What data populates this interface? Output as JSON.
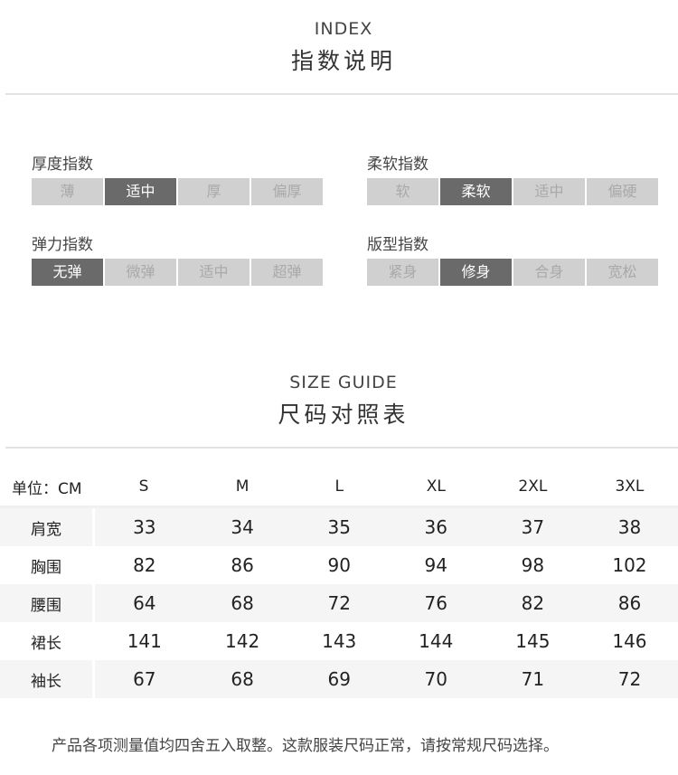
{
  "index_section": {
    "title_en": "INDEX",
    "title_cn": "指数说明",
    "groups": [
      {
        "label": "厚度指数",
        "options": [
          "薄",
          "适中",
          "厚",
          "偏厚"
        ],
        "selected": "适中"
      },
      {
        "label": "柔软指数",
        "options": [
          "软",
          "柔软",
          "适中",
          "偏硬"
        ],
        "selected": "柔软"
      },
      {
        "label": "弹力指数",
        "options": [
          "无弹",
          "微弹",
          "适中",
          "超弹"
        ],
        "selected": "无弹"
      },
      {
        "label": "版型指数",
        "options": [
          "紧身",
          "修身",
          "合身",
          "宽松"
        ],
        "selected": "修身"
      }
    ]
  },
  "size_section": {
    "title_en": "SIZE GUIDE",
    "title_cn": "尺码对照表",
    "table": {
      "headers": [
        "单位：CM",
        "S",
        "M",
        "L",
        "XL",
        "2XL",
        "3XL"
      ],
      "rows": [
        [
          "肩宽",
          "33",
          "34",
          "35",
          "36",
          "37",
          "38"
        ],
        [
          "胸围",
          "82",
          "86",
          "90",
          "94",
          "98",
          "102"
        ],
        [
          "腰围",
          "64",
          "68",
          "72",
          "76",
          "82",
          "86"
        ],
        [
          "裙长",
          "141",
          "142",
          "143",
          "144",
          "145",
          "146"
        ],
        [
          "袖长",
          "67",
          "68",
          "69",
          "70",
          "71",
          "72"
        ]
      ]
    }
  },
  "note": "产品各项测量值均四舍五入取整。这款服装尺码正常，请按常规尺码选择。",
  "colors": {
    "selected": "#6a6a6a",
    "unselected": "#d0d0d0"
  }
}
